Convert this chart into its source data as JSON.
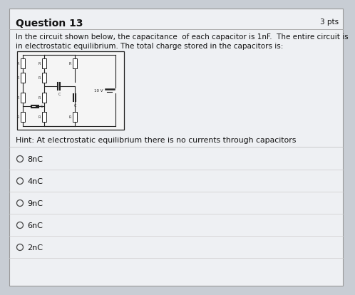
{
  "title": "Question 13",
  "pts": "3 pts",
  "question_text_line1": "In the circuit shown below, the capacitance  of each capacitor is 1nF.  The entire circuit is",
  "question_text_line2": "in electrostatic equilibrium. The total charge stored in the capacitors is:",
  "hint_text": "Hint: At electrostatic equilibrium there is no currents through capacitors",
  "choices": [
    "8nC",
    "4nC",
    "9nC",
    "6nC",
    "2nC"
  ],
  "bg_color": "#c8cdd4",
  "box_color": "#eef0f3",
  "text_color": "#111111",
  "title_fontsize": 10,
  "body_fontsize": 7.5,
  "choice_fontsize": 8,
  "hint_fontsize": 7.8
}
